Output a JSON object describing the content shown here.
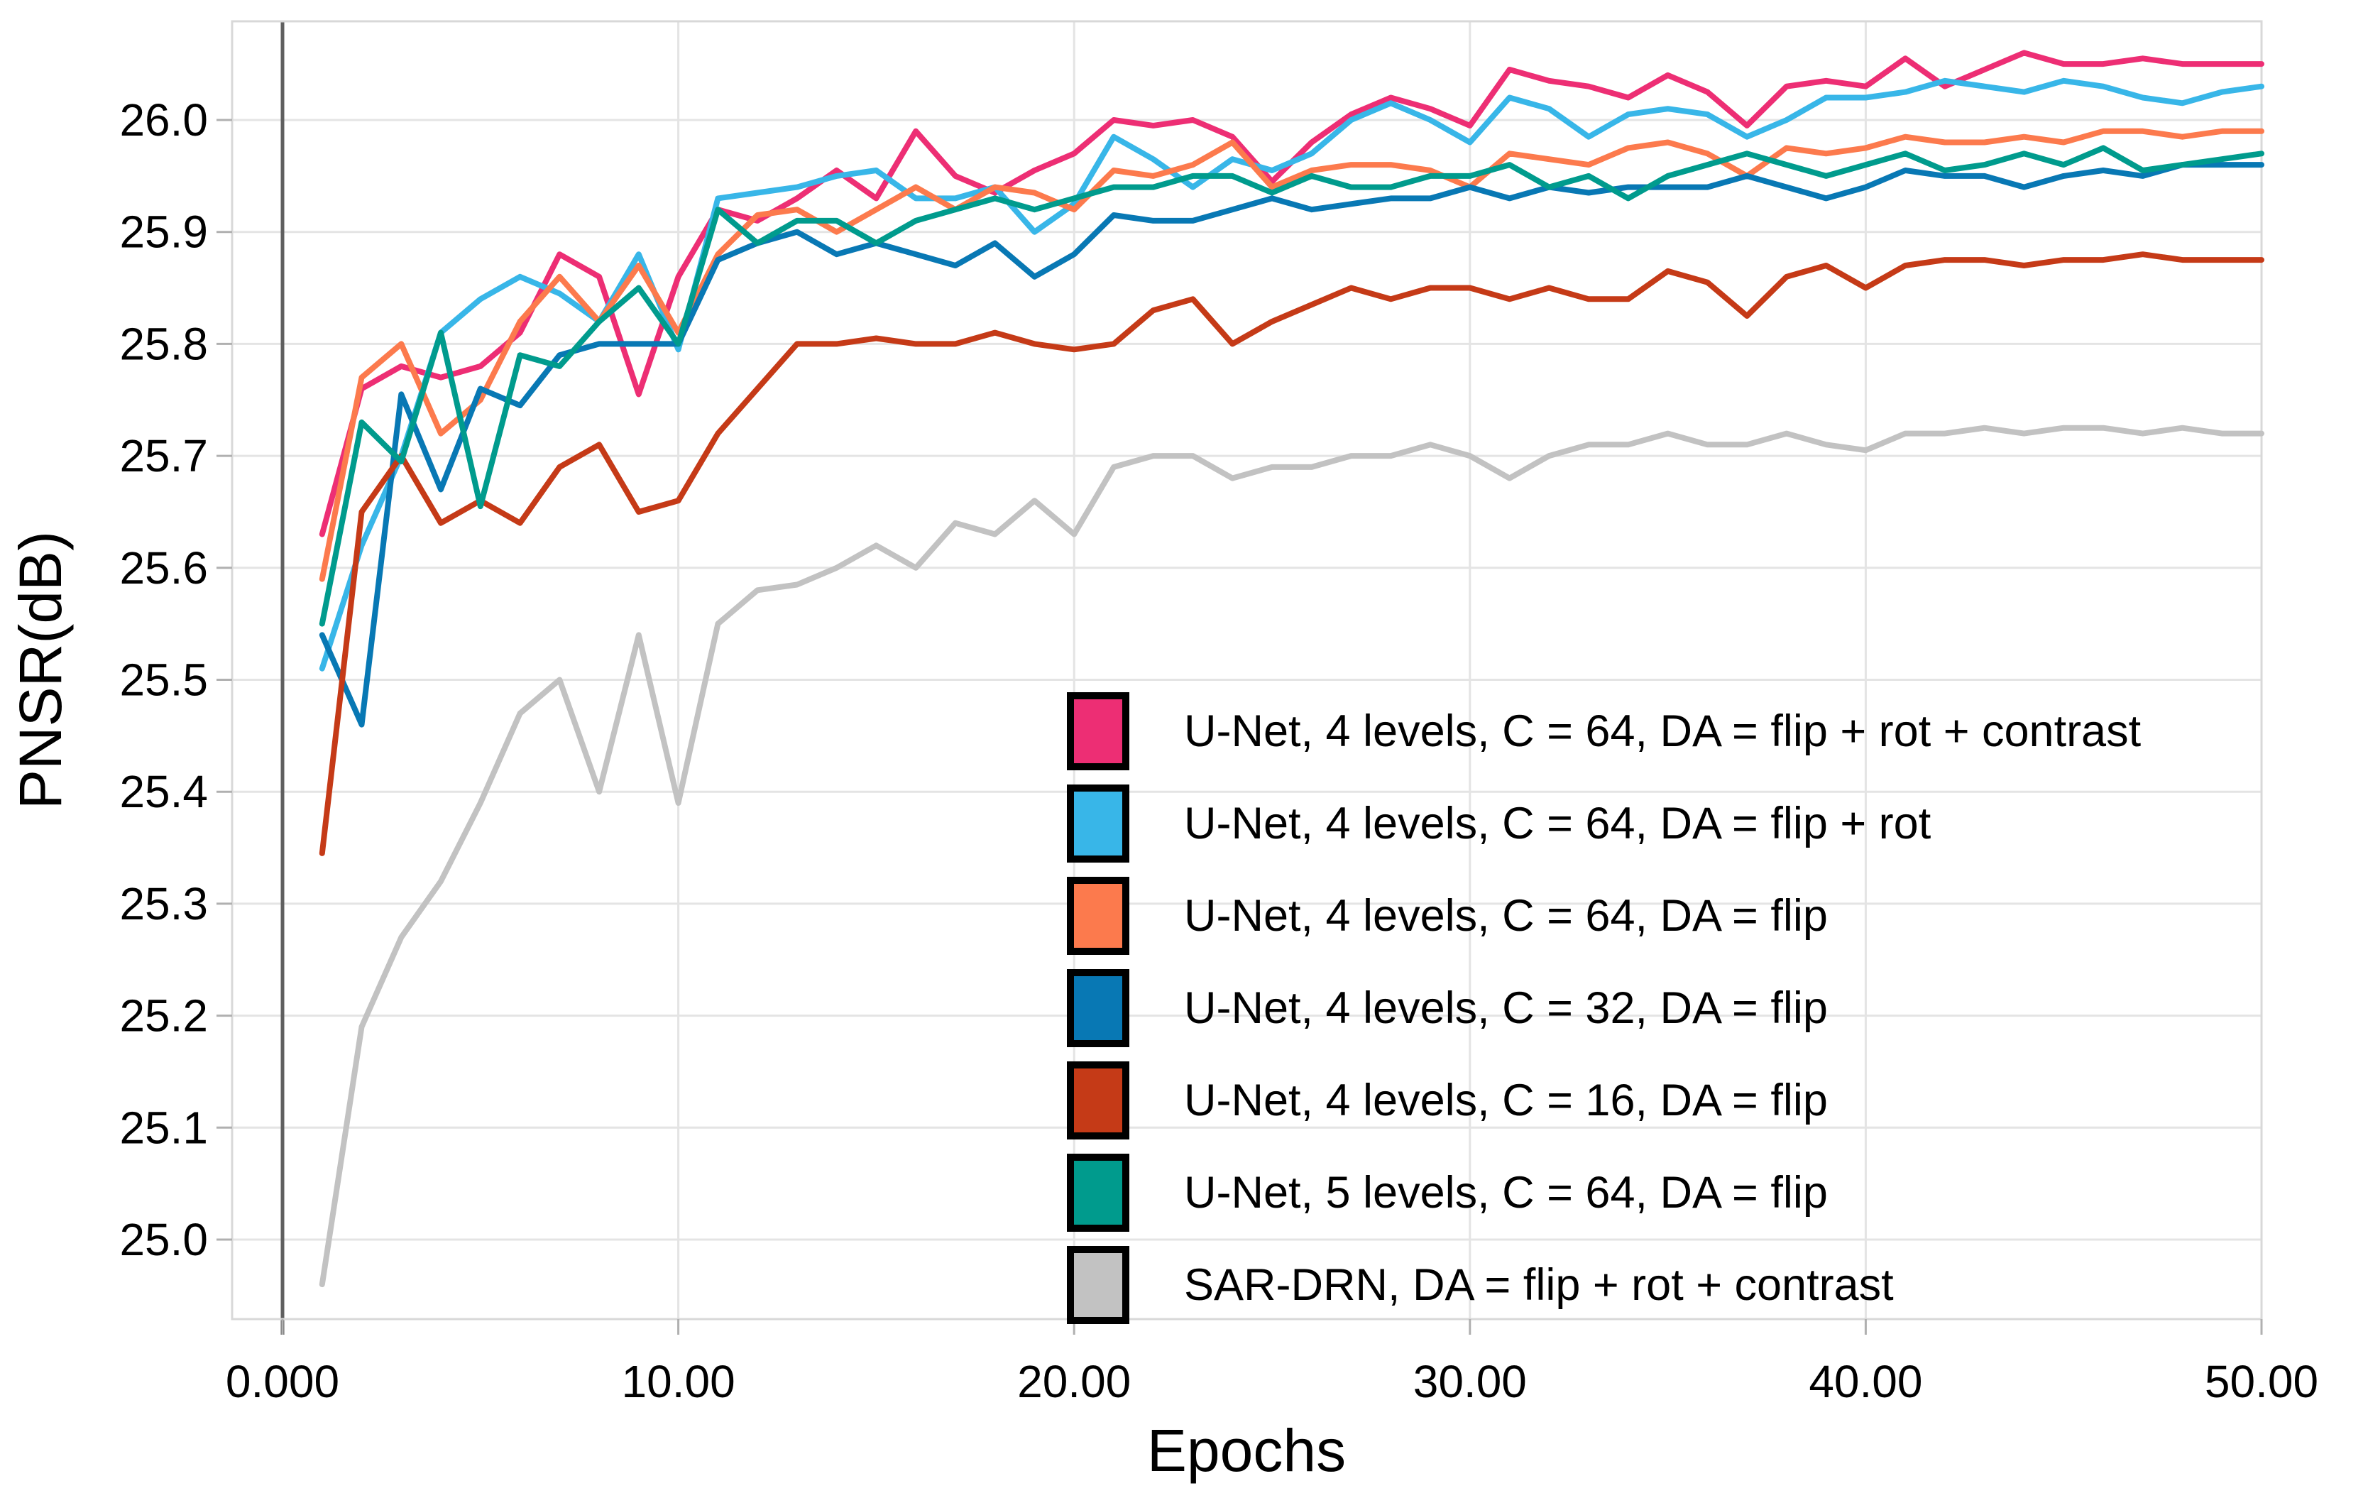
{
  "chart_data": {
    "type": "line",
    "title": "",
    "xlabel": "Epochs",
    "ylabel": "PNSR(dB)",
    "grid": true,
    "legend_position": "inside-right-middle",
    "xlim": [
      -1.3,
      50
    ],
    "ylim": [
      24.93,
      26.09
    ],
    "x_ticks": {
      "values": [
        0,
        10,
        20,
        30,
        40,
        50
      ],
      "labels": [
        "0.000",
        "10.00",
        "20.00",
        "30.00",
        "40.00",
        "50.00"
      ]
    },
    "y_ticks": {
      "values": [
        25.0,
        25.1,
        25.2,
        25.3,
        25.4,
        25.5,
        25.6,
        25.7,
        25.8,
        25.9,
        26.0
      ],
      "labels": [
        "25.0",
        "25.1",
        "25.2",
        "25.3",
        "25.4",
        "25.5",
        "25.6",
        "25.7",
        "25.8",
        "25.9",
        "26.0"
      ]
    },
    "x": [
      1,
      2,
      3,
      4,
      5,
      6,
      7,
      8,
      9,
      10,
      11,
      12,
      13,
      14,
      15,
      16,
      17,
      18,
      19,
      20,
      21,
      22,
      23,
      24,
      25,
      26,
      27,
      28,
      29,
      30,
      31,
      32,
      33,
      34,
      35,
      36,
      37,
      38,
      39,
      40,
      41,
      42,
      43,
      44,
      45,
      46,
      47,
      48,
      49,
      50
    ],
    "series": [
      {
        "name": "U-Net, 4 levels, C = 64, DA = flip + rot + contrast",
        "color": "#ED2E74",
        "values": [
          25.63,
          25.76,
          25.78,
          25.77,
          25.78,
          25.81,
          25.88,
          25.86,
          25.755,
          25.86,
          25.92,
          25.91,
          25.93,
          25.955,
          25.93,
          25.99,
          25.95,
          25.935,
          25.955,
          25.97,
          26.0,
          25.995,
          26.0,
          25.985,
          25.945,
          25.98,
          26.005,
          26.02,
          26.01,
          25.995,
          26.045,
          26.035,
          26.03,
          26.02,
          26.04,
          26.025,
          25.995,
          26.03,
          26.035,
          26.03,
          26.055,
          26.03,
          26.045,
          26.06,
          26.05,
          26.05,
          26.055,
          26.05,
          26.05,
          26.05
        ]
      },
      {
        "name": "U-Net, 4 levels, C = 64, DA = flip + rot",
        "color": "#38B6E8",
        "values": [
          25.51,
          25.62,
          25.7,
          25.81,
          25.84,
          25.86,
          25.845,
          25.82,
          25.88,
          25.795,
          25.93,
          25.935,
          25.94,
          25.95,
          25.955,
          25.93,
          25.93,
          25.94,
          25.9,
          25.925,
          25.985,
          25.965,
          25.94,
          25.965,
          25.955,
          25.97,
          26.0,
          26.015,
          26.0,
          25.98,
          26.02,
          26.01,
          25.985,
          26.005,
          26.01,
          26.005,
          25.985,
          26.0,
          26.02,
          26.02,
          26.025,
          26.035,
          26.03,
          26.025,
          26.035,
          26.03,
          26.02,
          26.015,
          26.025,
          26.03
        ]
      },
      {
        "name": "U-Net, 4 levels, C = 64, DA = flip",
        "color": "#FC7A4D",
        "values": [
          25.59,
          25.77,
          25.8,
          25.72,
          25.75,
          25.82,
          25.86,
          25.82,
          25.87,
          25.81,
          25.88,
          25.915,
          25.92,
          25.9,
          25.92,
          25.94,
          25.92,
          25.94,
          25.935,
          25.92,
          25.955,
          25.95,
          25.96,
          25.98,
          25.94,
          25.955,
          25.96,
          25.96,
          25.955,
          25.94,
          25.97,
          25.965,
          25.96,
          25.975,
          25.98,
          25.97,
          25.95,
          25.975,
          25.97,
          25.975,
          25.985,
          25.98,
          25.98,
          25.985,
          25.98,
          25.99,
          25.99,
          25.985,
          25.99,
          25.99
        ]
      },
      {
        "name": "U-Net, 4 levels, C = 32, DA = flip",
        "color": "#0878B4",
        "values": [
          25.54,
          25.46,
          25.755,
          25.67,
          25.76,
          25.745,
          25.79,
          25.8,
          25.8,
          25.8,
          25.875,
          25.89,
          25.9,
          25.88,
          25.89,
          25.88,
          25.87,
          25.89,
          25.86,
          25.88,
          25.915,
          25.91,
          25.91,
          25.92,
          25.93,
          25.92,
          25.925,
          25.93,
          25.93,
          25.94,
          25.93,
          25.94,
          25.935,
          25.94,
          25.94,
          25.94,
          25.95,
          25.94,
          25.93,
          25.94,
          25.955,
          25.95,
          25.95,
          25.94,
          25.95,
          25.955,
          25.95,
          25.96,
          25.96,
          25.96
        ]
      },
      {
        "name": "U-Net, 4 levels, C = 16, DA = flip",
        "color": "#C53A17",
        "values": [
          25.345,
          25.65,
          25.7,
          25.64,
          25.66,
          25.64,
          25.69,
          25.71,
          25.65,
          25.66,
          25.72,
          25.76,
          25.8,
          25.8,
          25.805,
          25.8,
          25.8,
          25.81,
          25.8,
          25.795,
          25.8,
          25.83,
          25.84,
          25.8,
          25.82,
          25.835,
          25.85,
          25.84,
          25.85,
          25.85,
          25.84,
          25.85,
          25.84,
          25.84,
          25.865,
          25.855,
          25.825,
          25.86,
          25.87,
          25.85,
          25.87,
          25.875,
          25.875,
          25.87,
          25.875,
          25.875,
          25.88,
          25.875,
          25.875,
          25.875
        ]
      },
      {
        "name": "U-Net, 5 levels, C = 64, DA = flip",
        "color": "#009B8D",
        "values": [
          25.55,
          25.73,
          25.695,
          25.81,
          25.655,
          25.79,
          25.78,
          25.82,
          25.85,
          25.8,
          25.92,
          25.89,
          25.91,
          25.91,
          25.89,
          25.91,
          25.92,
          25.93,
          25.92,
          25.93,
          25.94,
          25.94,
          25.95,
          25.95,
          25.935,
          25.95,
          25.94,
          25.94,
          25.95,
          25.95,
          25.96,
          25.94,
          25.95,
          25.93,
          25.95,
          25.96,
          25.97,
          25.96,
          25.95,
          25.96,
          25.97,
          25.955,
          25.96,
          25.97,
          25.96,
          25.975,
          25.955,
          25.96,
          25.965,
          25.97
        ]
      },
      {
        "name": "SAR-DRN, DA = flip + rot + contrast",
        "color": "#C2C2C2",
        "values": [
          24.96,
          25.19,
          25.27,
          25.32,
          25.39,
          25.47,
          25.5,
          25.4,
          25.54,
          25.39,
          25.55,
          25.58,
          25.585,
          25.6,
          25.62,
          25.6,
          25.64,
          25.63,
          25.66,
          25.63,
          25.69,
          25.7,
          25.7,
          25.68,
          25.69,
          25.69,
          25.7,
          25.7,
          25.71,
          25.7,
          25.68,
          25.7,
          25.71,
          25.71,
          25.72,
          25.71,
          25.71,
          25.72,
          25.71,
          25.705,
          25.72,
          25.72,
          25.725,
          25.72,
          25.725,
          25.725,
          25.72,
          25.725,
          25.72,
          25.72
        ]
      }
    ],
    "style_colors": {
      "gridline": "#e4e4e4",
      "plot_border": "#d8d8d8",
      "zero_line": "#5f5f5f",
      "tick": "#b0b0b0",
      "legend_swatch_border": "#000000"
    }
  }
}
